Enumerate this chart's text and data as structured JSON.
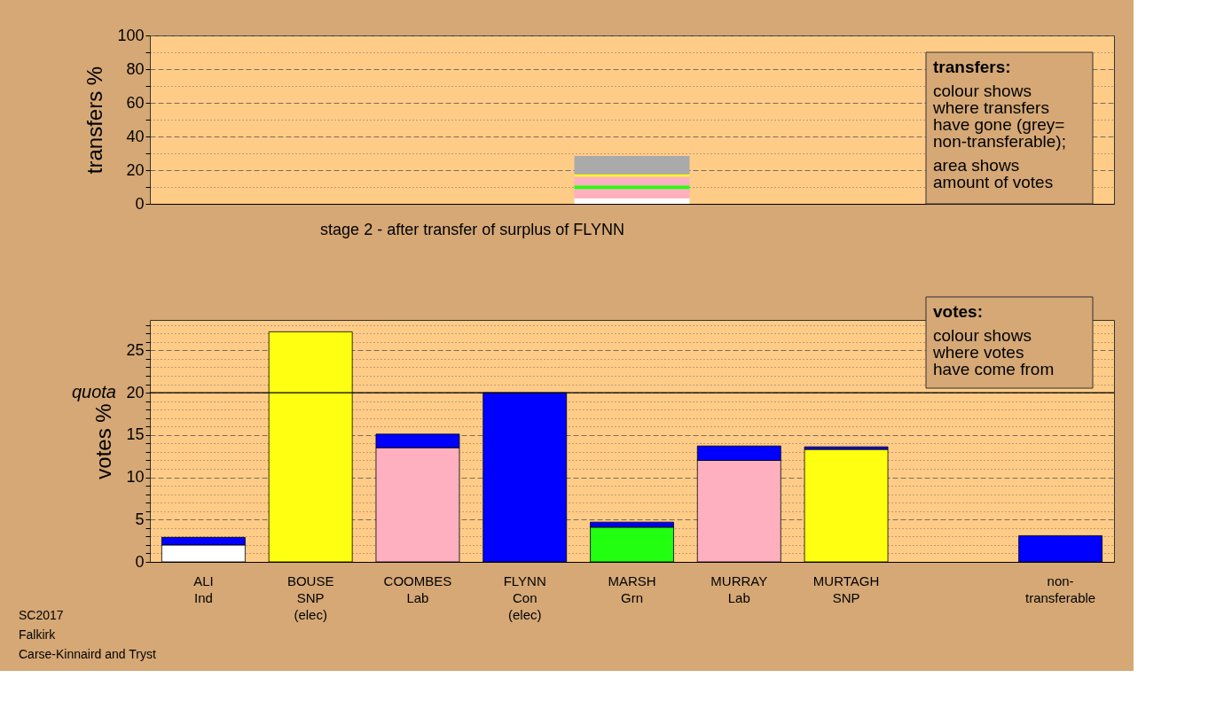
{
  "chart_data": [
    {
      "type": "bar",
      "stacked": true,
      "categories": [
        null
      ],
      "ylabel": "transfers %",
      "ylim": [
        0,
        100
      ],
      "yticks": [
        0,
        {
          "value": 10,
          "label": null
        },
        20,
        {
          "value": 30,
          "label": null
        },
        40,
        {
          "value": 50,
          "label": null
        },
        60,
        {
          "value": 70,
          "label": null
        },
        80,
        {
          "value": 90,
          "label": null
        },
        100
      ],
      "grid": "y",
      "tick_labels": "y",
      "series": [
        {
          "color": "#ffffff",
          "values": [
            3.3
          ]
        },
        {
          "color": "#ffb0c0",
          "values": [
            5.5
          ]
        },
        {
          "color": "#22ff11",
          "values": [
            2.1
          ]
        },
        {
          "color": "#ffb0c0",
          "values": [
            5.3
          ]
        },
        {
          "color": "#ffff11",
          "values": [
            1.3
          ]
        },
        {
          "color": "#aaaaaa",
          "values": [
            10.9
          ]
        }
      ],
      "annotations": [
        "transfers:",
        "colour shows\nwhere transfers\nhave gone (grey=\nnon-transferable);",
        "area shows\namount of votes"
      ]
    },
    {
      "type": "bar",
      "stacked": true,
      "title": "stage 2 - after transfer of surplus of FLYNN",
      "categories": [
        "ALI\nInd",
        "BOUSE\nSNP\n(elec)",
        "COOMBES\nLab",
        "FLYNN\nCon\n(elec)",
        "MARSH\nGrn",
        "MURRAY\nLab",
        "MURTAGH\nSNP",
        null,
        "non-\ntransferable"
      ],
      "ylabel": "votes %",
      "ylim": [
        0,
        28.6
      ],
      "yticks": [
        0,
        {
          "value": 1,
          "label": null
        },
        {
          "value": 2,
          "label": null
        },
        {
          "value": 3,
          "label": null
        },
        {
          "value": 4,
          "label": null
        },
        5,
        {
          "value": 6,
          "label": null
        },
        {
          "value": 7,
          "label": null
        },
        {
          "value": 8,
          "label": null
        },
        {
          "value": 9,
          "label": null
        },
        10,
        {
          "value": 11,
          "label": null
        },
        {
          "value": 12,
          "label": null
        },
        {
          "value": 13,
          "label": null
        },
        {
          "value": 14,
          "label": null
        },
        15,
        {
          "value": 16,
          "label": null
        },
        {
          "value": 17,
          "label": null
        },
        {
          "value": 18,
          "label": null
        },
        {
          "value": 19,
          "label": null
        },
        20,
        {
          "value": 21,
          "label": null
        },
        {
          "value": 22,
          "label": null
        },
        {
          "value": 23,
          "label": null
        },
        {
          "value": 24,
          "label": null
        },
        25,
        {
          "value": 26,
          "label": null
        },
        {
          "value": 27,
          "label": null
        },
        {
          "value": 28,
          "label": null
        }
      ],
      "grid": "y",
      "series": [
        {
          "colors": [
            "#ffffff",
            "#ffff11",
            "#ffb0c0",
            "#0000ff",
            "#22ff11",
            "#ffb0c0",
            "#ffff11",
            "#0000ff",
            "#0000ff"
          ],
          "values": [
            2.0,
            27.2,
            13.5,
            20.0,
            4.1,
            12.0,
            13.3,
            null,
            3.1
          ]
        },
        {
          "color": "#0000ff",
          "values": [
            0.9,
            null,
            1.6,
            null,
            0.6,
            1.7,
            0.3,
            null,
            null
          ]
        }
      ],
      "ref_lines": [
        {
          "axis": "y",
          "value": 20,
          "label": "quota",
          "color": "#000000",
          "line_style": "solid"
        }
      ],
      "annotations": [
        "votes:",
        "colour shows\nwhere votes\nhave come from",
        "SC2017",
        "Falkirk",
        "Carse-Kinnaird and Tryst"
      ]
    }
  ]
}
